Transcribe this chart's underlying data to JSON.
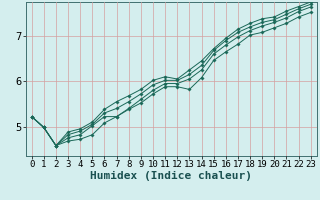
{
  "xlabel": "Humidex (Indice chaleur)",
  "bg_color": "#d4eeee",
  "grid_color": "#d4a0a0",
  "line_color": "#1a6858",
  "marker": "D",
  "markersize": 1.8,
  "linewidth": 0.7,
  "xlim": [
    -0.5,
    23.5
  ],
  "ylim": [
    4.35,
    7.75
  ],
  "yticks": [
    5,
    6,
    7
  ],
  "xticks": [
    0,
    1,
    2,
    3,
    4,
    5,
    6,
    7,
    8,
    9,
    10,
    11,
    12,
    13,
    14,
    15,
    16,
    17,
    18,
    19,
    20,
    21,
    22,
    23
  ],
  "series": [
    [
      5.22,
      4.98,
      4.58,
      4.68,
      4.72,
      4.82,
      5.08,
      5.22,
      5.38,
      5.52,
      5.72,
      5.88,
      5.88,
      5.82,
      6.08,
      6.46,
      6.65,
      6.82,
      7.02,
      7.08,
      7.18,
      7.28,
      7.42,
      7.52
    ],
    [
      5.22,
      4.98,
      4.58,
      4.75,
      4.82,
      5.02,
      5.22,
      5.22,
      5.4,
      5.6,
      5.8,
      5.95,
      5.95,
      6.05,
      6.25,
      6.6,
      6.8,
      6.98,
      7.12,
      7.22,
      7.3,
      7.4,
      7.54,
      7.64
    ],
    [
      5.22,
      4.98,
      4.58,
      4.82,
      4.9,
      5.05,
      5.3,
      5.4,
      5.55,
      5.72,
      5.92,
      6.02,
      6.02,
      6.15,
      6.35,
      6.68,
      6.9,
      7.08,
      7.2,
      7.3,
      7.36,
      7.48,
      7.6,
      7.7
    ],
    [
      5.22,
      4.98,
      4.58,
      4.88,
      4.95,
      5.1,
      5.38,
      5.55,
      5.68,
      5.82,
      6.02,
      6.1,
      6.05,
      6.25,
      6.45,
      6.72,
      6.95,
      7.15,
      7.28,
      7.38,
      7.42,
      7.55,
      7.65,
      7.75
    ]
  ],
  "xlabel_fontsize": 8,
  "tick_fontsize": 6.5,
  "ytick_fontsize": 7.5
}
